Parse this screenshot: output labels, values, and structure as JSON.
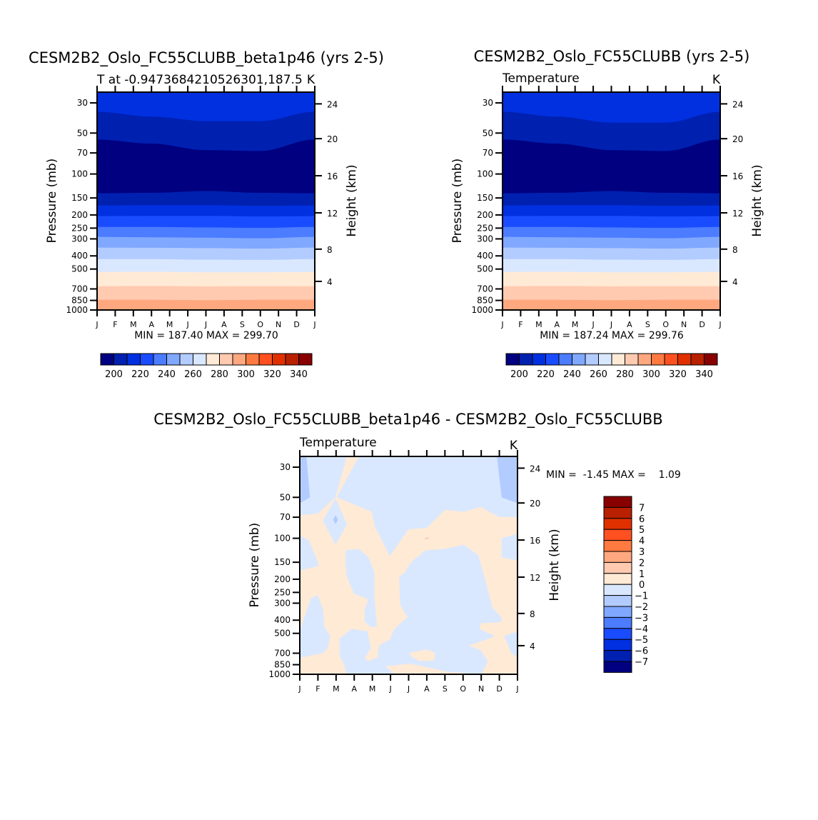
{
  "palette": [
    "#000080",
    "#0020b0",
    "#0030e0",
    "#1a4cff",
    "#4c7cff",
    "#80a8ff",
    "#b3ccff",
    "#d9e8ff",
    "#ffead6",
    "#ffcab0",
    "#ffa880",
    "#ff7a40",
    "#ff5020",
    "#e03000",
    "#b82000",
    "#880000"
  ],
  "chart_data": [
    {
      "type": "contour",
      "title": "CESM2B2_Oslo_FC55CLUBB_beta1p46 (yrs 2-5)",
      "left_subtitle": "T at -0.9473684210526301,187.5",
      "right_subtitle": "K",
      "xlabel": "",
      "ylabel": "Pressure (mb)",
      "y2label": "Height (km)",
      "x_ticks": [
        "J",
        "F",
        "M",
        "A",
        "M",
        "J",
        "J",
        "A",
        "S",
        "O",
        "N",
        "D",
        "J"
      ],
      "y_ticks": [
        30,
        50,
        70,
        100,
        150,
        200,
        250,
        300,
        400,
        500,
        700,
        850,
        1000
      ],
      "y2_ticks": [
        4,
        8,
        12,
        16,
        20,
        24
      ],
      "stats": "MIN = 187.40 MAX = 299.70",
      "colorbar_labels": [
        "200",
        "220",
        "240",
        "260",
        "280",
        "300",
        "320",
        "340"
      ],
      "band_boundaries_mb_at_months_0_3_6_9_12": [
        [
          35,
          38,
          41,
          41,
          35
        ],
        [
          56,
          60,
          67,
          68,
          56
        ],
        [
          139,
          138,
          134,
          138,
          139
        ],
        [
          171,
          170,
          170,
          172,
          171
        ],
        [
          205,
          204,
          204,
          206,
          205
        ],
        [
          246,
          246,
          248,
          250,
          246
        ],
        [
          291,
          293,
          295,
          298,
          291
        ],
        [
          349,
          350,
          352,
          355,
          349
        ],
        [
          424,
          424,
          428,
          430,
          424
        ],
        [
          527,
          526,
          530,
          530,
          527
        ],
        [
          671,
          668,
          672,
          670,
          671
        ],
        [
          844,
          844,
          850,
          844,
          844
        ]
      ],
      "band_colors": [
        "#0030e0",
        "#0020b0",
        "#000080",
        "#0020b0",
        "#0030e0",
        "#1a4cff",
        "#4c7cff",
        "#80a8ff",
        "#b3ccff",
        "#d9e8ff",
        "#ffead6",
        "#ffcab0",
        "#ffa880"
      ]
    },
    {
      "type": "contour",
      "title": "CESM2B2_Oslo_FC55CLUBB (yrs 2-5)",
      "left_subtitle": "Temperature",
      "right_subtitle": "K",
      "ylabel": "Pressure (mb)",
      "y2label": "Height (km)",
      "x_ticks": [
        "J",
        "F",
        "M",
        "A",
        "M",
        "J",
        "J",
        "A",
        "S",
        "O",
        "N",
        "D",
        "J"
      ],
      "y_ticks": [
        30,
        50,
        70,
        100,
        150,
        200,
        250,
        300,
        400,
        500,
        700,
        850,
        1000
      ],
      "y2_ticks": [
        4,
        8,
        12,
        16,
        20,
        24
      ],
      "stats": "MIN = 187.24 MAX = 299.76",
      "colorbar_labels": [
        "200",
        "220",
        "240",
        "260",
        "280",
        "300",
        "320",
        "340"
      ],
      "band_boundaries_mb_at_months_0_3_6_9_12": [
        [
          35,
          38,
          42,
          42,
          35
        ],
        [
          56,
          60,
          67,
          68,
          56
        ],
        [
          139,
          138,
          134,
          138,
          139
        ],
        [
          171,
          170,
          170,
          172,
          171
        ],
        [
          205,
          204,
          204,
          206,
          205
        ],
        [
          246,
          246,
          248,
          250,
          246
        ],
        [
          291,
          293,
          295,
          298,
          291
        ],
        [
          349,
          350,
          352,
          355,
          349
        ],
        [
          424,
          424,
          428,
          430,
          424
        ],
        [
          527,
          526,
          530,
          530,
          527
        ],
        [
          671,
          668,
          672,
          670,
          671
        ],
        [
          844,
          844,
          850,
          844,
          844
        ]
      ],
      "band_colors": [
        "#0030e0",
        "#0020b0",
        "#000080",
        "#0020b0",
        "#0030e0",
        "#1a4cff",
        "#4c7cff",
        "#80a8ff",
        "#b3ccff",
        "#d9e8ff",
        "#ffead6",
        "#ffcab0",
        "#ffa880"
      ]
    },
    {
      "type": "contour",
      "title": "CESM2B2_Oslo_FC55CLUBB_beta1p46 - CESM2B2_Oslo_FC55CLUBB",
      "left_subtitle": "Temperature",
      "right_subtitle": "K",
      "ylabel": "Pressure (mb)",
      "y2label": "Height (km)",
      "x_ticks": [
        "J",
        "F",
        "M",
        "A",
        "M",
        "J",
        "J",
        "A",
        "S",
        "O",
        "N",
        "D",
        "J"
      ],
      "y_ticks": [
        30,
        50,
        70,
        100,
        150,
        200,
        250,
        300,
        400,
        500,
        700,
        850,
        1000
      ],
      "y2_ticks": [
        4,
        8,
        12,
        16,
        20,
        24
      ],
      "stats": "MIN =  -1.45 MAX =    1.09",
      "colorbar_labels": [
        "7",
        "6",
        "5",
        "4",
        "3",
        "2",
        "1",
        "0",
        "-1",
        "-2",
        "-3",
        "-4",
        "-5",
        "-6",
        "-7"
      ],
      "background_color": "#d9e8ff",
      "regions_month_mb": [
        {
          "color": "#ffead6",
          "points": [
            [
              1.97,
              50
            ],
            [
              2.6,
              25
            ],
            [
              3.25,
              25
            ],
            [
              2.02,
              50
            ],
            [
              3.97,
              64
            ],
            [
              4.1,
              80
            ],
            [
              4.96,
              136
            ],
            [
              6.0,
              86
            ],
            [
              7.0,
              84
            ],
            [
              8.0,
              62
            ],
            [
              9.04,
              64
            ],
            [
              9.96,
              59
            ],
            [
              11.0,
              70
            ],
            [
              12,
              70
            ],
            [
              12,
              1000
            ],
            [
              0,
              1000
            ],
            [
              0,
              68
            ],
            [
              1.0,
              66
            ]
          ]
        },
        {
          "color": "#d9e8ff",
          "points": [
            [
              1.28,
              74
            ],
            [
              1.97,
              51
            ],
            [
              2.59,
              79
            ],
            [
              1.97,
              111
            ]
          ]
        },
        {
          "color": "#b3ccff",
          "points": [
            [
              1.97,
              68
            ],
            [
              2.1,
              73
            ],
            [
              1.97,
              78
            ],
            [
              1.84,
              73
            ]
          ]
        },
        {
          "color": "#d9e8ff",
          "points": [
            [
              0,
              95
            ],
            [
              0.49,
              104
            ],
            [
              1.0,
              150
            ],
            [
              1.0,
              160
            ],
            [
              0,
              172
            ]
          ]
        },
        {
          "color": "#d9e8ff",
          "points": [
            [
              0,
              484
            ],
            [
              0.62,
              275
            ],
            [
              1.0,
              264
            ],
            [
              1.28,
              337
            ],
            [
              1.34,
              446
            ],
            [
              1.67,
              525
            ],
            [
              1.54,
              641
            ],
            [
              1.28,
              696
            ],
            [
              0,
              754
            ]
          ]
        },
        {
          "color": "#d9e8ff",
          "points": [
            [
              2.53,
              123
            ],
            [
              3.25,
              120
            ],
            [
              3.78,
              138
            ],
            [
              4.1,
              177
            ],
            [
              4.1,
              264
            ],
            [
              4.24,
              446
            ],
            [
              3.9,
              446
            ],
            [
              3.58,
              410
            ],
            [
              3.58,
              337
            ],
            [
              3.78,
              281
            ],
            [
              2.99,
              254
            ],
            [
              2.6,
              191
            ],
            [
              2.53,
              150
            ]
          ]
        },
        {
          "color": "#d9e8ff",
          "points": [
            [
              2.2,
              546
            ],
            [
              2.86,
              465
            ],
            [
              3.72,
              484
            ],
            [
              3.91,
              641
            ],
            [
              3.58,
              754
            ],
            [
              3.78,
              801
            ],
            [
              4.3,
              754
            ],
            [
              4.37,
              615
            ],
            [
              4.96,
              557
            ],
            [
              5.22,
              465
            ],
            [
              5.95,
              380
            ],
            [
              5.55,
              311
            ],
            [
              5.49,
              192
            ],
            [
              5.82,
              177
            ],
            [
              6.14,
              150
            ],
            [
              6.93,
              123
            ],
            [
              7.99,
              120
            ],
            [
              9.04,
              112
            ],
            [
              9.83,
              133
            ],
            [
              10.2,
              199
            ],
            [
              10.6,
              322
            ],
            [
              11.1,
              380
            ],
            [
              11.1,
              412
            ],
            [
              9.96,
              420
            ],
            [
              9.9,
              465
            ],
            [
              10.75,
              525
            ],
            [
              9.3,
              615
            ],
            [
              9.96,
              668
            ],
            [
              10.36,
              801
            ],
            [
              10.0,
              1000
            ],
            [
              8.1,
              953
            ],
            [
              6.14,
              834
            ],
            [
              4.7,
              868
            ],
            [
              5.22,
              1000
            ],
            [
              2.59,
              1000
            ],
            [
              2.46,
              851
            ],
            [
              2.2,
              724
            ]
          ]
        },
        {
          "color": "#ffead6",
          "points": [
            [
              6.08,
              695
            ],
            [
              7.0,
              660
            ],
            [
              7.46,
              697
            ],
            [
              7.4,
              790
            ],
            [
              6.6,
              800
            ],
            [
              6.1,
              730
            ]
          ]
        },
        {
          "color": "#d9e8ff",
          "points": [
            [
              12,
              93
            ],
            [
              11.14,
              100
            ],
            [
              11.14,
              138
            ],
            [
              12,
              145
            ]
          ]
        },
        {
          "color": "#d9e8ff",
          "points": [
            [
              11.28,
              525
            ],
            [
              11.67,
              696
            ],
            [
              12,
              754
            ],
            [
              12,
              484
            ]
          ]
        },
        {
          "color": "#b3ccff",
          "points": [
            [
              0,
              25
            ],
            [
              0.36,
              25
            ],
            [
              0.55,
              50
            ],
            [
              0,
              55
            ]
          ]
        },
        {
          "color": "#b3ccff",
          "points": [
            [
              10.88,
              25
            ],
            [
              12,
              25
            ],
            [
              12,
              55
            ],
            [
              11.14,
              50
            ],
            [
              11.0,
              35
            ]
          ]
        },
        {
          "color": "#ffcab0",
          "points": [
            [
              6.9,
              99
            ],
            [
              7.1,
              99
            ],
            [
              7.1,
              101
            ],
            [
              6.9,
              101
            ]
          ]
        }
      ]
    }
  ]
}
